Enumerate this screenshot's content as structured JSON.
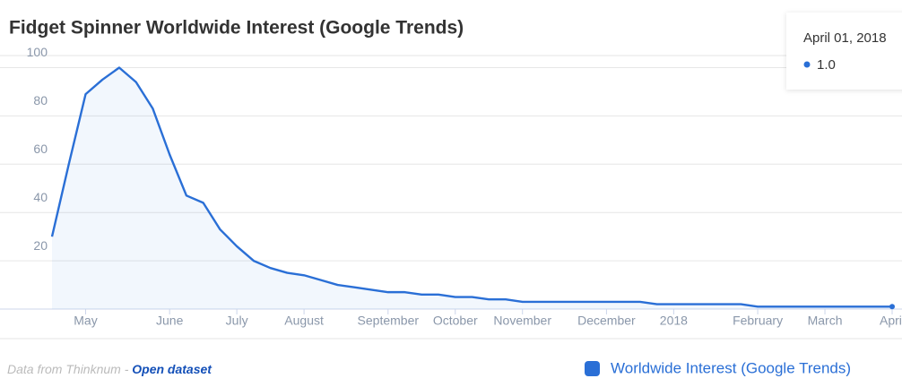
{
  "chart_data": {
    "type": "line",
    "title": "Fidget Spinner Worldwide Interest (Google Trends)",
    "categories": [
      null,
      null,
      "May",
      null,
      null,
      null,
      null,
      "June",
      null,
      null,
      null,
      "July",
      null,
      null,
      null,
      "August",
      null,
      null,
      null,
      null,
      "September",
      null,
      null,
      null,
      "October",
      null,
      null,
      null,
      "November",
      null,
      null,
      null,
      null,
      "December",
      null,
      null,
      null,
      "2018",
      null,
      null,
      null,
      null,
      "February",
      null,
      null,
      null,
      "March",
      null,
      null,
      null,
      "April"
    ],
    "series": [
      {
        "name": "Worldwide Interest (Google Trends)",
        "color": "#2a6fd6",
        "values": [
          30,
          60,
          89,
          95,
          100,
          94,
          83,
          64,
          47,
          44,
          33,
          26,
          20,
          17,
          15,
          14,
          12,
          10,
          9,
          8,
          7,
          7,
          6,
          6,
          5,
          5,
          4,
          4,
          3,
          3,
          3,
          3,
          3,
          3,
          3,
          3,
          2,
          2,
          2,
          2,
          2,
          2,
          1,
          1,
          1,
          1,
          1,
          1,
          1,
          1,
          1
        ]
      }
    ],
    "ylim": [
      0,
      105
    ],
    "yticks": [
      20,
      40,
      60,
      80,
      100
    ],
    "grid": true,
    "tooltip": {
      "x": "April 01, 2018",
      "value": 1,
      "value_label": "1.0"
    },
    "credits": {
      "text": "Data from Thinknum - ",
      "link": "Open dataset"
    }
  }
}
